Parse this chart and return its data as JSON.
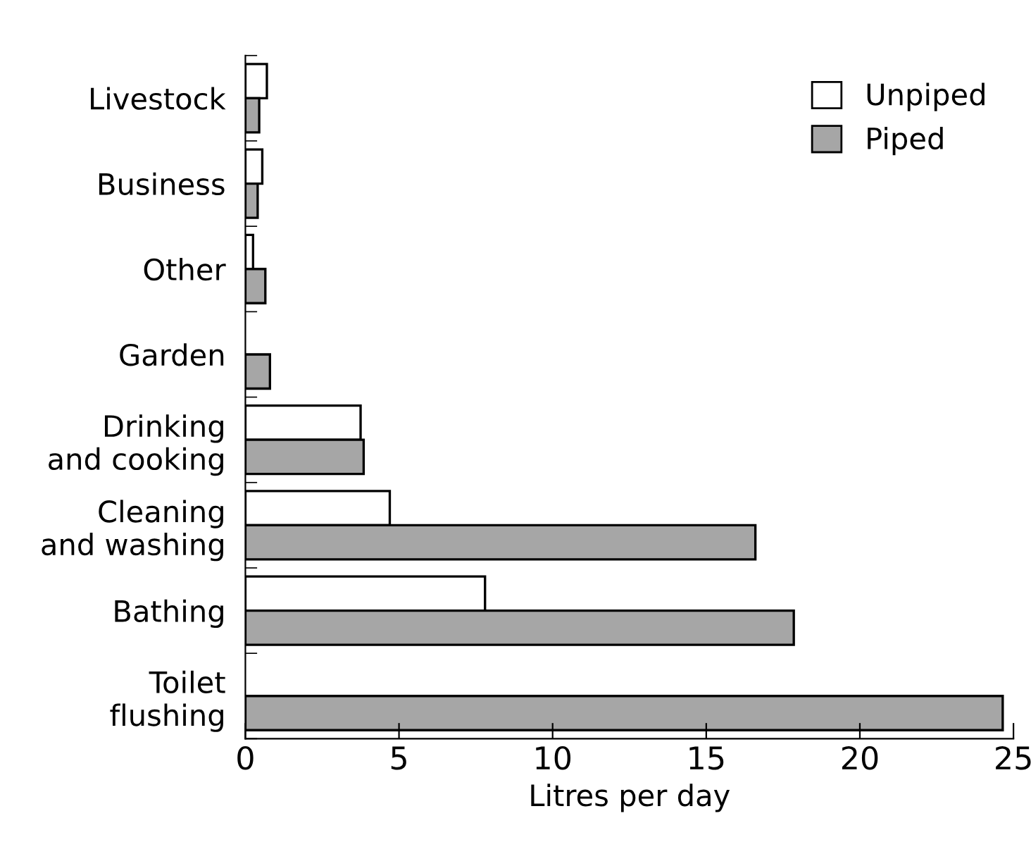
{
  "chart_data": {
    "type": "bar",
    "orientation": "horizontal",
    "xlabel": "Litres per day",
    "categories": [
      "Livestock",
      "Business",
      "Other",
      "Garden",
      "Drinking\nand cooking",
      "Cleaning\nand washing",
      "Bathing",
      "Toilet\nflushing"
    ],
    "series": [
      {
        "name": "Unpiped",
        "color": "#ffffff",
        "values": [
          0.7,
          0.55,
          0.25,
          null,
          3.75,
          4.7,
          7.8,
          null
        ]
      },
      {
        "name": "Piped",
        "color": "#a6a6a6",
        "values": [
          0.45,
          0.4,
          0.65,
          0.8,
          3.85,
          16.6,
          17.85,
          24.65
        ]
      }
    ],
    "xlim": [
      0,
      25
    ],
    "xticks": [
      0,
      5,
      10,
      15,
      20,
      25
    ],
    "legend": "top right",
    "grid": false
  }
}
